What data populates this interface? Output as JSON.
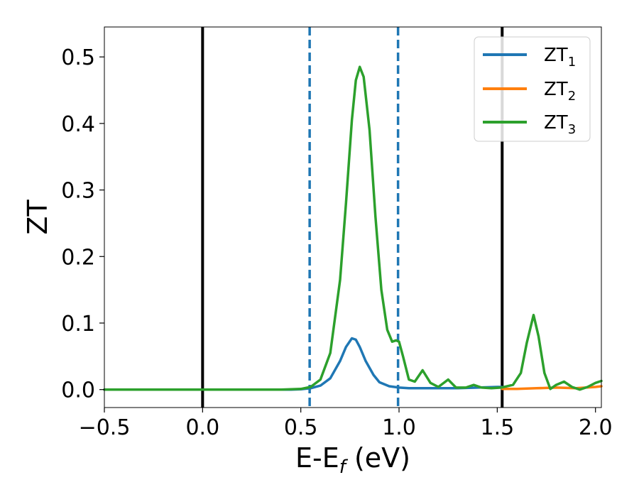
{
  "chart_data": {
    "type": "line",
    "xlabel_main": "E-E",
    "xlabel_sub": "f",
    "xlabel_unit": " (eV)",
    "ylabel": "ZT",
    "xlim": [
      -0.5,
      2.03
    ],
    "ylim": [
      -0.027,
      0.545
    ],
    "grid": false,
    "legend_position": "top-right",
    "x_ticks": [
      {
        "value": -0.5,
        "label": "−0.5"
      },
      {
        "value": 0.0,
        "label": "0.0"
      },
      {
        "value": 0.5,
        "label": "0.5"
      },
      {
        "value": 1.0,
        "label": "1.0"
      },
      {
        "value": 1.5,
        "label": "1.5"
      },
      {
        "value": 2.0,
        "label": "2.0"
      }
    ],
    "y_ticks": [
      {
        "value": 0.0,
        "label": "0.0"
      },
      {
        "value": 0.1,
        "label": "0.1"
      },
      {
        "value": 0.2,
        "label": "0.2"
      },
      {
        "value": 0.3,
        "label": "0.3"
      },
      {
        "value": 0.4,
        "label": "0.4"
      },
      {
        "value": 0.5,
        "label": "0.5"
      }
    ],
    "vertical_lines": [
      {
        "x": 0.0,
        "style": "solid",
        "color": "#000000"
      },
      {
        "x": 0.545,
        "style": "dashed",
        "color": "#1f77b4"
      },
      {
        "x": 0.995,
        "style": "dashed",
        "color": "#1f77b4"
      },
      {
        "x": 1.525,
        "style": "solid",
        "color": "#000000"
      }
    ],
    "series": [
      {
        "name": "ZT",
        "sub": "1",
        "color": "#1f77b4",
        "points": [
          [
            -0.5,
            0.0
          ],
          [
            0.0,
            0.0
          ],
          [
            0.45,
            0.0
          ],
          [
            0.5,
            0.0005
          ],
          [
            0.55,
            0.002
          ],
          [
            0.6,
            0.006
          ],
          [
            0.65,
            0.017
          ],
          [
            0.7,
            0.043
          ],
          [
            0.73,
            0.064
          ],
          [
            0.76,
            0.077
          ],
          [
            0.78,
            0.075
          ],
          [
            0.8,
            0.064
          ],
          [
            0.83,
            0.043
          ],
          [
            0.87,
            0.022
          ],
          [
            0.9,
            0.011
          ],
          [
            0.95,
            0.005
          ],
          [
            1.0,
            0.003
          ],
          [
            1.05,
            0.002
          ],
          [
            1.1,
            0.002
          ],
          [
            1.2,
            0.002
          ],
          [
            1.3,
            0.002
          ],
          [
            1.4,
            0.003
          ],
          [
            1.5,
            0.004
          ],
          [
            1.525,
            0.004
          ]
        ]
      },
      {
        "name": "ZT",
        "sub": "2",
        "color": "#ff7f0e",
        "points": [
          [
            1.525,
            0.001
          ],
          [
            1.6,
            0.001
          ],
          [
            1.7,
            0.002
          ],
          [
            1.8,
            0.003
          ],
          [
            1.9,
            0.002
          ],
          [
            2.0,
            0.004
          ],
          [
            2.03,
            0.005
          ]
        ]
      },
      {
        "name": "ZT",
        "sub": "3",
        "color": "#2ca02c",
        "points": [
          [
            -0.5,
            0.0
          ],
          [
            0.0,
            0.0
          ],
          [
            0.4,
            0.0
          ],
          [
            0.5,
            0.001
          ],
          [
            0.55,
            0.004
          ],
          [
            0.6,
            0.015
          ],
          [
            0.65,
            0.055
          ],
          [
            0.7,
            0.165
          ],
          [
            0.73,
            0.28
          ],
          [
            0.76,
            0.405
          ],
          [
            0.78,
            0.465
          ],
          [
            0.8,
            0.485
          ],
          [
            0.82,
            0.47
          ],
          [
            0.85,
            0.39
          ],
          [
            0.88,
            0.26
          ],
          [
            0.91,
            0.15
          ],
          [
            0.94,
            0.09
          ],
          [
            0.965,
            0.072
          ],
          [
            0.985,
            0.074
          ],
          [
            1.0,
            0.072
          ],
          [
            1.02,
            0.05
          ],
          [
            1.05,
            0.015
          ],
          [
            1.08,
            0.012
          ],
          [
            1.12,
            0.029
          ],
          [
            1.16,
            0.01
          ],
          [
            1.2,
            0.004
          ],
          [
            1.25,
            0.015
          ],
          [
            1.29,
            0.003
          ],
          [
            1.34,
            0.003
          ],
          [
            1.38,
            0.007
          ],
          [
            1.42,
            0.003
          ],
          [
            1.47,
            0.002
          ],
          [
            1.52,
            0.003
          ],
          [
            1.58,
            0.007
          ],
          [
            1.62,
            0.025
          ],
          [
            1.65,
            0.07
          ],
          [
            1.685,
            0.112
          ],
          [
            1.71,
            0.08
          ],
          [
            1.74,
            0.025
          ],
          [
            1.77,
            0.001
          ],
          [
            1.8,
            0.007
          ],
          [
            1.84,
            0.012
          ],
          [
            1.88,
            0.004
          ],
          [
            1.92,
            0.0
          ],
          [
            1.96,
            0.004
          ],
          [
            2.0,
            0.01
          ],
          [
            2.03,
            0.013
          ]
        ]
      }
    ]
  }
}
